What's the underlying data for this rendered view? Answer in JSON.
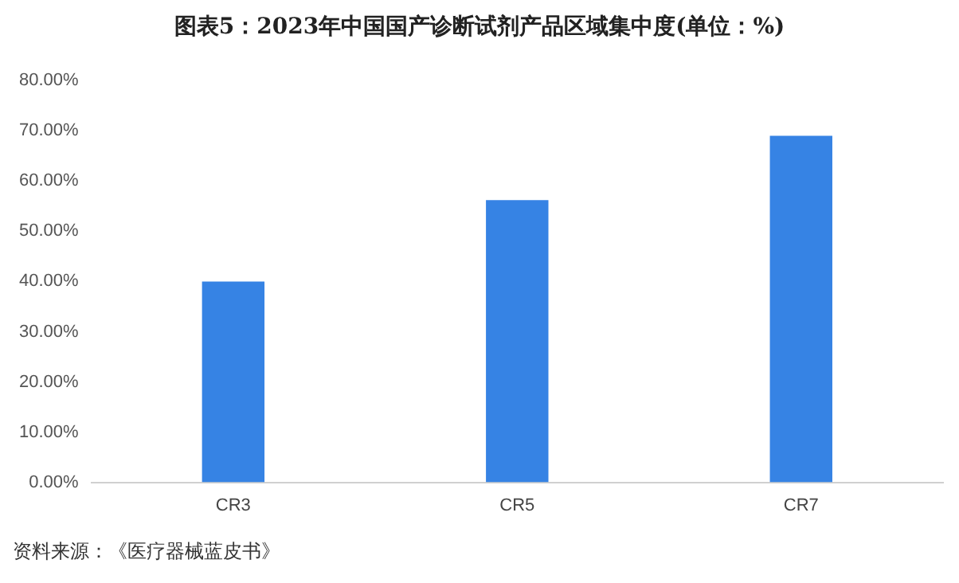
{
  "chart_data": {
    "type": "bar",
    "title": "图表5：2023年中国国产诊断试剂产品区域集中度(单位：%)",
    "categories": [
      "CR3",
      "CR5",
      "CR7"
    ],
    "values": [
      40.0,
      56.2,
      69.0
    ],
    "color": "#3683e4",
    "ylim": [
      0,
      80
    ],
    "yticks": [
      {
        "value": 0,
        "label": "0.00%"
      },
      {
        "value": 10,
        "label": "10.00%"
      },
      {
        "value": 20,
        "label": "20.00%"
      },
      {
        "value": 30,
        "label": "30.00%"
      },
      {
        "value": 40,
        "label": "40.00%"
      },
      {
        "value": 50,
        "label": "50.00%"
      },
      {
        "value": 60,
        "label": "60.00%"
      },
      {
        "value": 70,
        "label": "70.00%"
      },
      {
        "value": 80,
        "label": "80.00%"
      }
    ],
    "grid": false,
    "legend": false,
    "annotations": [
      "资料来源：《医疗器械蓝皮书》"
    ]
  }
}
